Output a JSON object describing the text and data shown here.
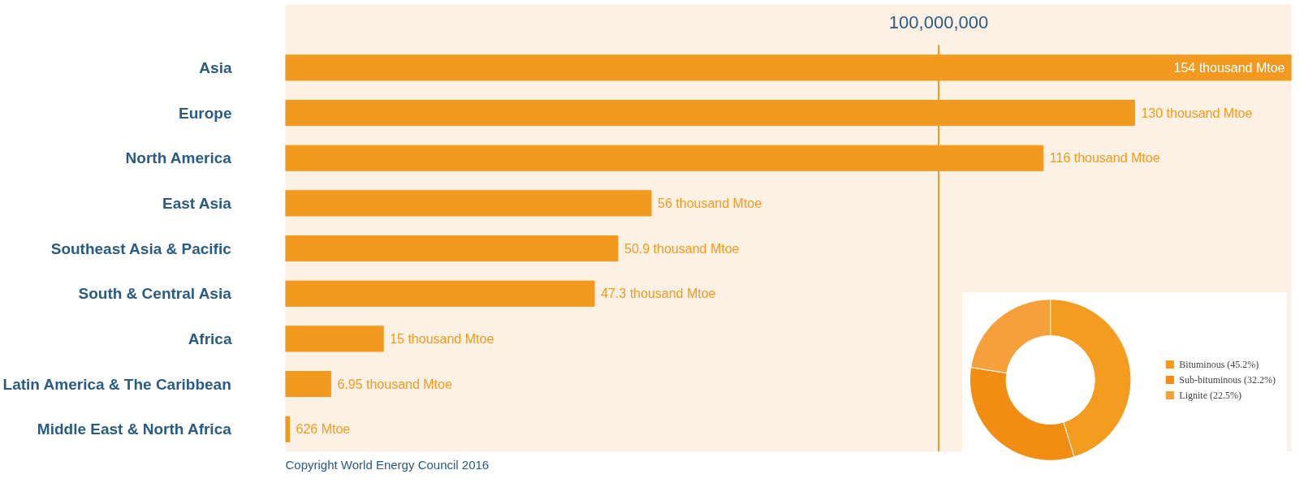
{
  "chart_data": [
    {
      "type": "bar",
      "orientation": "horizontal",
      "categories": [
        "Asia",
        "Europe",
        "North America",
        "East Asia",
        "Southeast Asia & Pacific",
        "South & Central Asia",
        "Africa",
        "Latin America & The Caribbean",
        "Middle East & North Africa"
      ],
      "values": [
        154000,
        130000,
        116000,
        56000,
        50900,
        47300,
        15000,
        6950,
        626
      ],
      "value_labels": [
        "154 thousand Mtoe",
        "130 thousand Mtoe",
        "116 thousand Mtoe",
        "56 thousand Mtoe",
        "50.9 thousand Mtoe",
        "47.3 thousand Mtoe",
        "15 thousand Mtoe",
        "6.95 thousand Mtoe",
        "626 Mtoe"
      ],
      "color": "#f39a1e",
      "ref_lines": [
        {
          "axis": "x",
          "value": 100000,
          "label": "100,000,000",
          "color": "#f39a1e"
        }
      ],
      "tick_labels": "y",
      "annotations": [
        "Copyright World Energy Council 2016"
      ]
    },
    {
      "type": "donut",
      "categories": [
        "Bituminous (45.2%)",
        "Sub-bituminous (32.2%)",
        "Lignite (22.5%)"
      ],
      "values": [
        45.2,
        32.2,
        22.5
      ],
      "colors": [
        "#f39c1f",
        "#f28d14",
        "#f5a03a"
      ],
      "legend": "right"
    }
  ]
}
